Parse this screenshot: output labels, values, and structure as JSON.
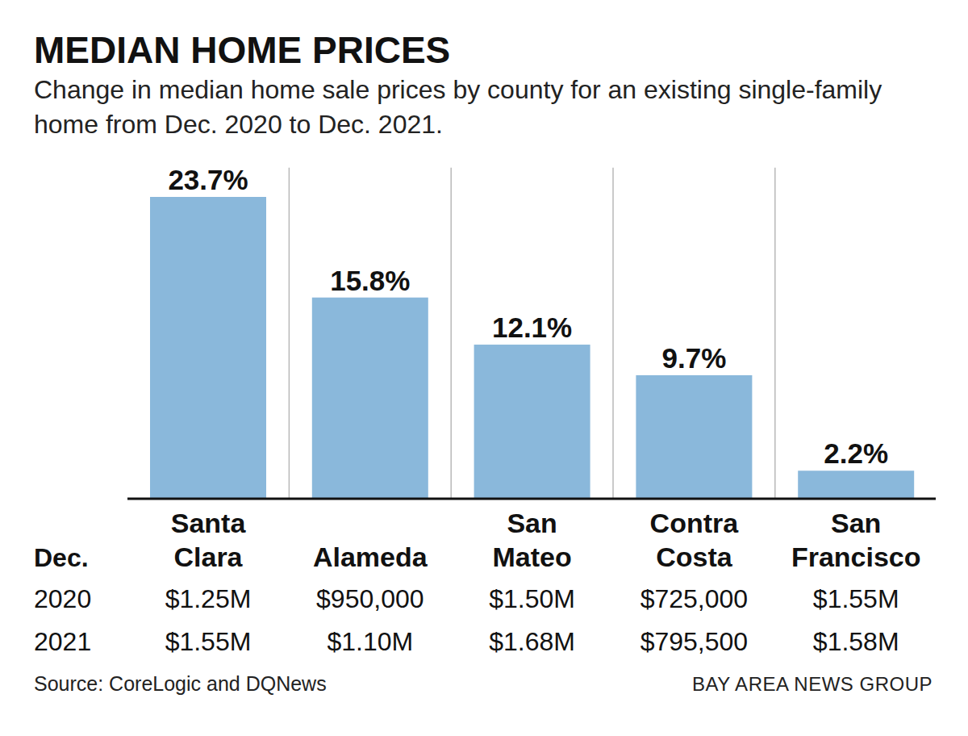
{
  "chart_data": {
    "type": "bar",
    "title": "MEDIAN HOME PRICES",
    "subtitle": "Change in median home sale prices by county for an existing single-family home from Dec. 2020 to Dec. 2021.",
    "categories": [
      "Santa Clara",
      "Alameda",
      "San Mateo",
      "Contra Costa",
      "San Francisco"
    ],
    "values": [
      23.7,
      15.8,
      12.1,
      9.7,
      2.2
    ],
    "value_labels": [
      "23.7%",
      "15.8%",
      "12.1%",
      "9.7%",
      "2.2%"
    ],
    "data_labels": true,
    "color": "#8ab8db",
    "ylim": [
      0,
      26
    ],
    "tick_labels": "x",
    "price_table": {
      "row_header": "Dec.",
      "rows": [
        {
          "year": "2020",
          "prices": [
            "$1.25M",
            "$950,000",
            "$1.50M",
            "$725,000",
            "$1.55M"
          ]
        },
        {
          "year": "2021",
          "prices": [
            "$1.55M",
            "$1.10M",
            "$1.68M",
            "$795,500",
            "$1.58M"
          ]
        }
      ]
    },
    "source": "Source: CoreLogic and DQNews",
    "credit": "BAY AREA NEWS GROUP"
  }
}
